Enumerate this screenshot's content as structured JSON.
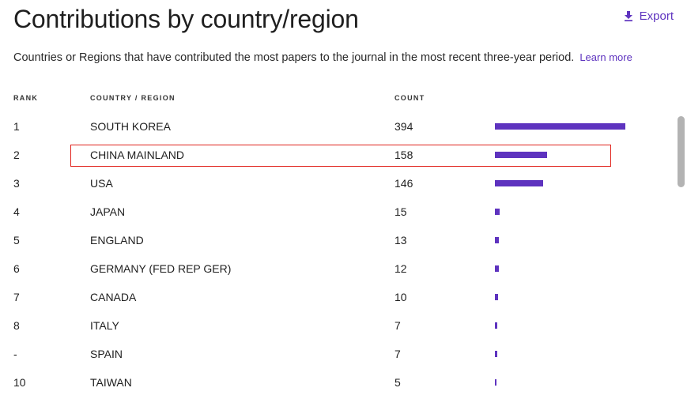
{
  "title": "Contributions by country/region",
  "export_label": "Export",
  "subtitle": "Countries or Regions that have contributed the most papers to the journal in the most recent three-year period.",
  "learn_more": "Learn more",
  "columns": {
    "rank": "RANK",
    "country": "COUNTRY / REGION",
    "count": "COUNT"
  },
  "accent_color": "#5e33bf",
  "highlight_color": "#e0231c",
  "rows": [
    {
      "rank": "1",
      "country": "SOUTH KOREA",
      "count": "394",
      "value": 394
    },
    {
      "rank": "2",
      "country": "CHINA MAINLAND",
      "count": "158",
      "value": 158
    },
    {
      "rank": "3",
      "country": "USA",
      "count": "146",
      "value": 146
    },
    {
      "rank": "4",
      "country": "JAPAN",
      "count": "15",
      "value": 15
    },
    {
      "rank": "5",
      "country": "ENGLAND",
      "count": "13",
      "value": 13
    },
    {
      "rank": "6",
      "country": "GERMANY (FED REP GER)",
      "count": "12",
      "value": 12
    },
    {
      "rank": "7",
      "country": "CANADA",
      "count": "10",
      "value": 10
    },
    {
      "rank": "8",
      "country": "ITALY",
      "count": "7",
      "value": 7
    },
    {
      "rank": "-",
      "country": "SPAIN",
      "count": "7",
      "value": 7
    },
    {
      "rank": "10",
      "country": "TAIWAN",
      "count": "5",
      "value": 5
    }
  ]
}
